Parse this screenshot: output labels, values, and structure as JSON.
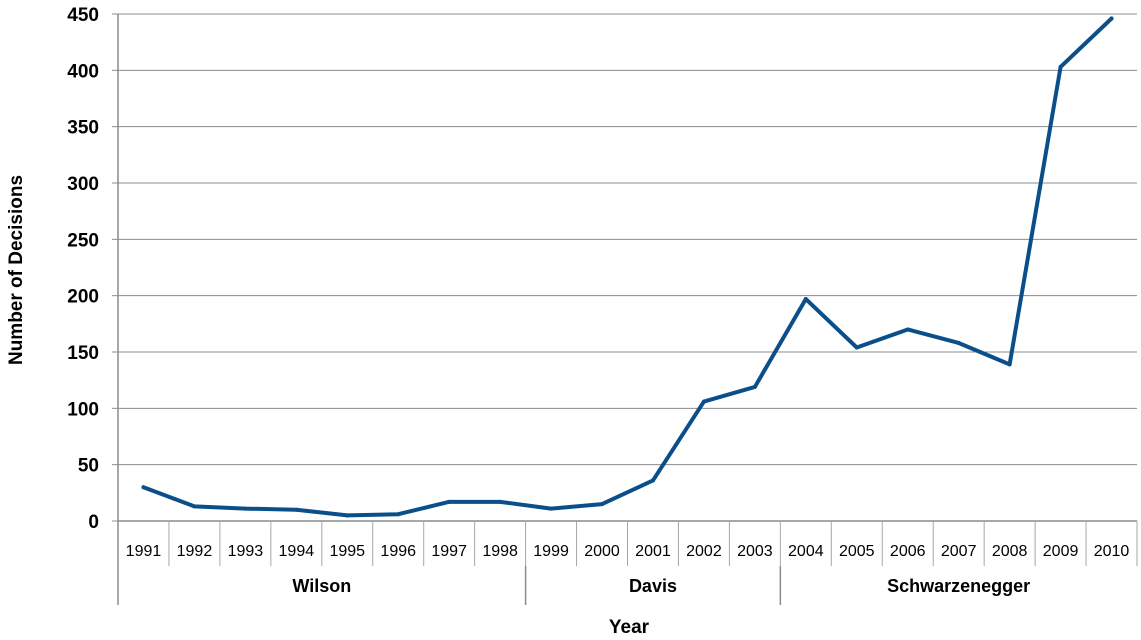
{
  "chart_data": {
    "type": "line",
    "title": "",
    "xlabel": "Year",
    "ylabel": "Number of Decisions",
    "ylim": [
      0,
      450
    ],
    "y_ticks": [
      0,
      50,
      100,
      150,
      200,
      250,
      300,
      350,
      400,
      450
    ],
    "grid": true,
    "legend": "none",
    "line_color": "#0b4f8a",
    "categories": [
      "1991",
      "1992",
      "1993",
      "1994",
      "1995",
      "1996",
      "1997",
      "1998",
      "1999",
      "2000",
      "2001",
      "2002",
      "2003",
      "2004",
      "2005",
      "2006",
      "2007",
      "2008",
      "2009",
      "2010"
    ],
    "series": [
      {
        "values": [
          30,
          13,
          11,
          10,
          5,
          6,
          17,
          17,
          11,
          15,
          36,
          106,
          119,
          197,
          154,
          170,
          158,
          139,
          403,
          446
        ]
      }
    ],
    "groups": [
      {
        "label": "Wilson",
        "start": "1991",
        "end": "1998"
      },
      {
        "label": "Davis",
        "start": "1999",
        "end": "2003"
      },
      {
        "label": "Schwarzenegger",
        "start": "2004",
        "end": "2010"
      }
    ]
  }
}
